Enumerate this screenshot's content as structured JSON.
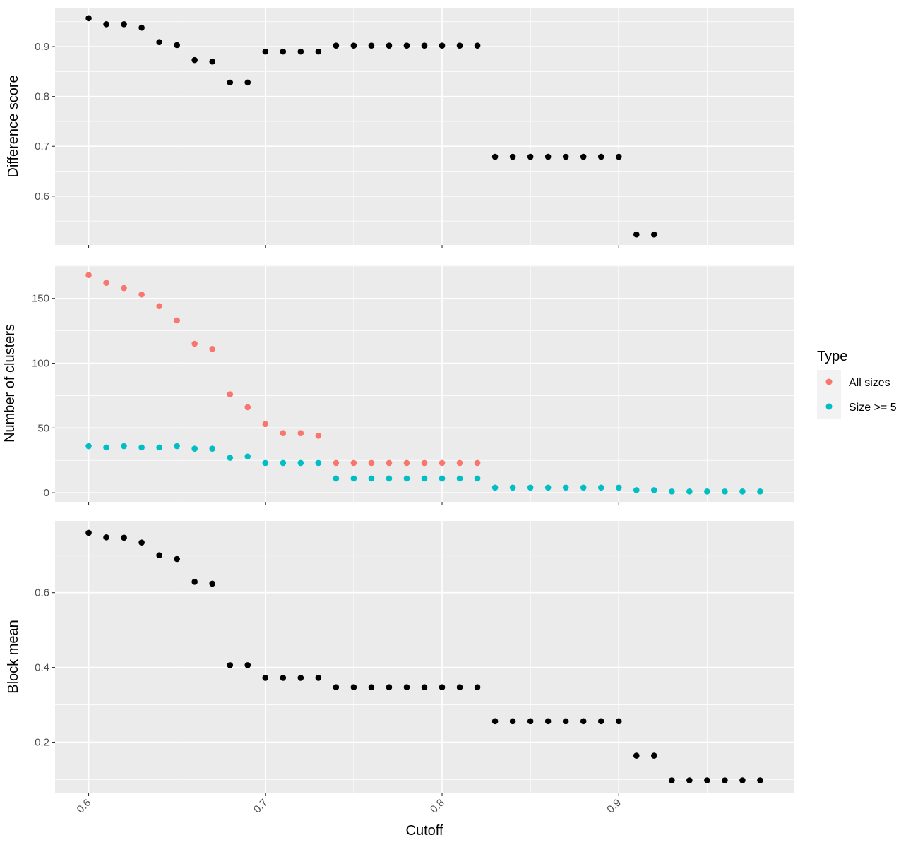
{
  "chart_data": {
    "type": "scatter",
    "xlabel": "Cutoff",
    "x_ticks": [
      0.6,
      0.7,
      0.8,
      0.9
    ],
    "xlim": [
      0.581,
      0.999
    ],
    "legend": {
      "title": "Type",
      "placement": "right",
      "entries": [
        {
          "label": "All sizes",
          "color": "#F8766D"
        },
        {
          "label": "Size >= 5",
          "color": "#00BFC4"
        }
      ]
    },
    "panels": [
      {
        "ylabel": "Difference score",
        "ylim": [
          0.502,
          0.978
        ],
        "y_ticks": [
          0.6,
          0.7,
          0.8,
          0.9
        ],
        "series": [
          {
            "color": "#000000",
            "points": [
              [
                0.6,
                0.957
              ],
              [
                0.61,
                0.945
              ],
              [
                0.62,
                0.945
              ],
              [
                0.63,
                0.938
              ],
              [
                0.64,
                0.909
              ],
              [
                0.65,
                0.903
              ],
              [
                0.66,
                0.873
              ],
              [
                0.67,
                0.87
              ],
              [
                0.68,
                0.828
              ],
              [
                0.69,
                0.828
              ],
              [
                0.7,
                0.89
              ],
              [
                0.71,
                0.89
              ],
              [
                0.72,
                0.89
              ],
              [
                0.73,
                0.89
              ],
              [
                0.74,
                0.902
              ],
              [
                0.75,
                0.902
              ],
              [
                0.76,
                0.902
              ],
              [
                0.77,
                0.902
              ],
              [
                0.78,
                0.902
              ],
              [
                0.79,
                0.902
              ],
              [
                0.8,
                0.902
              ],
              [
                0.81,
                0.902
              ],
              [
                0.82,
                0.902
              ],
              [
                0.83,
                0.679
              ],
              [
                0.84,
                0.679
              ],
              [
                0.85,
                0.679
              ],
              [
                0.86,
                0.679
              ],
              [
                0.87,
                0.679
              ],
              [
                0.88,
                0.679
              ],
              [
                0.89,
                0.679
              ],
              [
                0.9,
                0.679
              ],
              [
                0.91,
                0.523
              ],
              [
                0.92,
                0.523
              ]
            ]
          }
        ]
      },
      {
        "ylabel": "Number of clusters",
        "ylim": [
          -7,
          176
        ],
        "y_ticks": [
          0,
          50,
          100,
          150
        ],
        "series": [
          {
            "name": "All sizes",
            "color": "#F8766D",
            "points": [
              [
                0.6,
                168
              ],
              [
                0.61,
                162
              ],
              [
                0.62,
                158
              ],
              [
                0.63,
                153
              ],
              [
                0.64,
                144
              ],
              [
                0.65,
                133
              ],
              [
                0.66,
                115
              ],
              [
                0.67,
                111
              ],
              [
                0.68,
                76
              ],
              [
                0.69,
                66
              ],
              [
                0.7,
                53
              ],
              [
                0.71,
                46
              ],
              [
                0.72,
                46
              ],
              [
                0.73,
                44
              ],
              [
                0.74,
                23
              ],
              [
                0.75,
                23
              ],
              [
                0.76,
                23
              ],
              [
                0.77,
                23
              ],
              [
                0.78,
                23
              ],
              [
                0.79,
                23
              ],
              [
                0.8,
                23
              ],
              [
                0.81,
                23
              ],
              [
                0.82,
                23
              ]
            ]
          },
          {
            "name": "Size >= 5",
            "color": "#00BFC4",
            "points": [
              [
                0.6,
                36
              ],
              [
                0.61,
                35
              ],
              [
                0.62,
                36
              ],
              [
                0.63,
                35
              ],
              [
                0.64,
                35
              ],
              [
                0.65,
                36
              ],
              [
                0.66,
                34
              ],
              [
                0.67,
                34
              ],
              [
                0.68,
                27
              ],
              [
                0.69,
                28
              ],
              [
                0.7,
                23
              ],
              [
                0.71,
                23
              ],
              [
                0.72,
                23
              ],
              [
                0.73,
                23
              ],
              [
                0.74,
                11
              ],
              [
                0.75,
                11
              ],
              [
                0.76,
                11
              ],
              [
                0.77,
                11
              ],
              [
                0.78,
                11
              ],
              [
                0.79,
                11
              ],
              [
                0.8,
                11
              ],
              [
                0.81,
                11
              ],
              [
                0.82,
                11
              ],
              [
                0.83,
                4
              ],
              [
                0.84,
                4
              ],
              [
                0.85,
                4
              ],
              [
                0.86,
                4
              ],
              [
                0.87,
                4
              ],
              [
                0.88,
                4
              ],
              [
                0.89,
                4
              ],
              [
                0.9,
                4
              ],
              [
                0.91,
                2
              ],
              [
                0.92,
                2
              ],
              [
                0.93,
                1
              ],
              [
                0.94,
                1
              ],
              [
                0.95,
                1
              ],
              [
                0.96,
                1
              ],
              [
                0.97,
                1
              ],
              [
                0.98,
                1
              ]
            ]
          }
        ]
      },
      {
        "ylabel": "Block mean",
        "ylim": [
          0.065,
          0.792
        ],
        "y_ticks": [
          0.2,
          0.4,
          0.6
        ],
        "series": [
          {
            "color": "#000000",
            "points": [
              [
                0.6,
                0.76
              ],
              [
                0.61,
                0.748
              ],
              [
                0.62,
                0.747
              ],
              [
                0.63,
                0.734
              ],
              [
                0.64,
                0.7
              ],
              [
                0.65,
                0.69
              ],
              [
                0.66,
                0.629
              ],
              [
                0.67,
                0.624
              ],
              [
                0.68,
                0.406
              ],
              [
                0.69,
                0.406
              ],
              [
                0.7,
                0.372
              ],
              [
                0.71,
                0.372
              ],
              [
                0.72,
                0.372
              ],
              [
                0.73,
                0.372
              ],
              [
                0.74,
                0.347
              ],
              [
                0.75,
                0.347
              ],
              [
                0.76,
                0.347
              ],
              [
                0.77,
                0.347
              ],
              [
                0.78,
                0.347
              ],
              [
                0.79,
                0.347
              ],
              [
                0.8,
                0.347
              ],
              [
                0.81,
                0.347
              ],
              [
                0.82,
                0.347
              ],
              [
                0.83,
                0.256
              ],
              [
                0.84,
                0.256
              ],
              [
                0.85,
                0.256
              ],
              [
                0.86,
                0.256
              ],
              [
                0.87,
                0.256
              ],
              [
                0.88,
                0.256
              ],
              [
                0.89,
                0.256
              ],
              [
                0.9,
                0.256
              ],
              [
                0.91,
                0.164
              ],
              [
                0.92,
                0.164
              ],
              [
                0.93,
                0.098
              ],
              [
                0.94,
                0.098
              ],
              [
                0.95,
                0.098
              ],
              [
                0.96,
                0.098
              ],
              [
                0.97,
                0.098
              ],
              [
                0.98,
                0.098
              ]
            ]
          }
        ]
      }
    ]
  }
}
